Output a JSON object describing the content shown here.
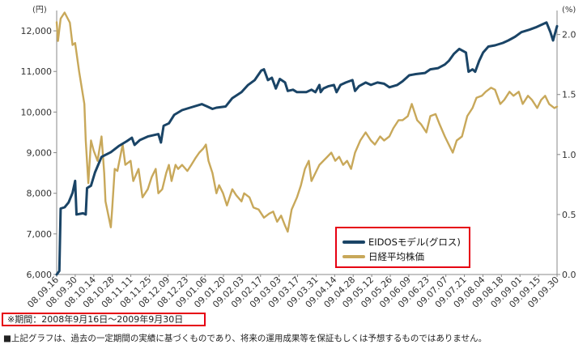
{
  "chart_data": {
    "type": "line",
    "left_axis_unit": "(円)",
    "right_axis_unit": "(%)",
    "left_ylim": [
      6000,
      12500
    ],
    "right_ylim": [
      0.0,
      2.2
    ],
    "left_ticks": [
      "6,000",
      "7,000",
      "8,000",
      "9,000",
      "10,000",
      "11,000",
      "12,000"
    ],
    "right_ticks": [
      "0.0",
      "0.5",
      "1.0",
      "1.5",
      "2.0"
    ],
    "x_range": [
      "2008-09-16",
      "2009-09-30"
    ],
    "x_ticks": [
      "08.09.16",
      "08.09.30",
      "08.10.14",
      "08.10.28",
      "08.11.11",
      "08.11.25",
      "08.12.09",
      "08.12.23",
      "09.01.06",
      "09.01.20",
      "09.02.03",
      "09.02.17",
      "09.03.03",
      "09.03.17",
      "09.03.31",
      "09.04.14",
      "09.04.28",
      "09.05.12",
      "09.05.26",
      "09.06.09",
      "09.06.23",
      "09.07.07",
      "09.07.21",
      "09.08.04",
      "09.08.18",
      "09.09.01",
      "09.09.15",
      "09.09.30"
    ],
    "grid": false,
    "legend_position": "lower-right",
    "series": [
      {
        "name": "EIDOSモデル(グロス)",
        "axis": "right",
        "color": "#1a4466",
        "points": [
          [
            "2008-09-16",
            0.0
          ],
          [
            "2008-09-18",
            0.03
          ],
          [
            "2008-09-19",
            0.55
          ],
          [
            "2008-09-22",
            0.56
          ],
          [
            "2008-09-25",
            0.6
          ],
          [
            "2008-09-28",
            0.68
          ],
          [
            "2008-09-30",
            0.78
          ],
          [
            "2008-10-01",
            0.5
          ],
          [
            "2008-10-06",
            0.51
          ],
          [
            "2008-10-08",
            0.5
          ],
          [
            "2008-10-09",
            0.72
          ],
          [
            "2008-10-12",
            0.74
          ],
          [
            "2008-10-15",
            0.85
          ],
          [
            "2008-10-20",
            0.98
          ],
          [
            "2008-10-27",
            1.02
          ],
          [
            "2008-11-02",
            1.07
          ],
          [
            "2008-11-08",
            1.11
          ],
          [
            "2008-11-12",
            1.14
          ],
          [
            "2008-11-14",
            1.08
          ],
          [
            "2008-11-18",
            1.12
          ],
          [
            "2008-11-24",
            1.15
          ],
          [
            "2008-12-02",
            1.17
          ],
          [
            "2008-12-04",
            1.1
          ],
          [
            "2008-12-06",
            1.24
          ],
          [
            "2008-12-10",
            1.26
          ],
          [
            "2008-12-14",
            1.33
          ],
          [
            "2008-12-20",
            1.37
          ],
          [
            "2008-12-26",
            1.39
          ],
          [
            "2009-01-04",
            1.42
          ],
          [
            "2009-01-08",
            1.4
          ],
          [
            "2009-01-12",
            1.38
          ],
          [
            "2009-01-15",
            1.39
          ],
          [
            "2009-01-22",
            1.4
          ],
          [
            "2009-01-27",
            1.47
          ],
          [
            "2009-02-03",
            1.52
          ],
          [
            "2009-02-08",
            1.58
          ],
          [
            "2009-02-13",
            1.62
          ],
          [
            "2009-02-18",
            1.7
          ],
          [
            "2009-02-20",
            1.71
          ],
          [
            "2009-02-23",
            1.62
          ],
          [
            "2009-02-26",
            1.64
          ],
          [
            "2009-03-01",
            1.55
          ],
          [
            "2009-03-04",
            1.63
          ],
          [
            "2009-03-08",
            1.6
          ],
          [
            "2009-03-10",
            1.53
          ],
          [
            "2009-03-14",
            1.54
          ],
          [
            "2009-03-17",
            1.52
          ],
          [
            "2009-03-24",
            1.52
          ],
          [
            "2009-03-28",
            1.54
          ],
          [
            "2009-03-31",
            1.52
          ],
          [
            "2009-04-03",
            1.58
          ],
          [
            "2009-04-04",
            1.52
          ],
          [
            "2009-04-06",
            1.55
          ],
          [
            "2009-04-10",
            1.57
          ],
          [
            "2009-04-14",
            1.58
          ],
          [
            "2009-04-16",
            1.52
          ],
          [
            "2009-04-19",
            1.58
          ],
          [
            "2009-04-23",
            1.6
          ],
          [
            "2009-04-28",
            1.62
          ],
          [
            "2009-04-30",
            1.53
          ],
          [
            "2009-05-03",
            1.57
          ],
          [
            "2009-05-08",
            1.6
          ],
          [
            "2009-05-12",
            1.58
          ],
          [
            "2009-05-17",
            1.6
          ],
          [
            "2009-05-22",
            1.59
          ],
          [
            "2009-05-26",
            1.56
          ],
          [
            "2009-06-01",
            1.58
          ],
          [
            "2009-06-05",
            1.61
          ],
          [
            "2009-06-08",
            1.64
          ],
          [
            "2009-06-10",
            1.66
          ],
          [
            "2009-06-15",
            1.67
          ],
          [
            "2009-06-22",
            1.68
          ],
          [
            "2009-06-26",
            1.71
          ],
          [
            "2009-07-02",
            1.72
          ],
          [
            "2009-07-07",
            1.75
          ],
          [
            "2009-07-10",
            1.78
          ],
          [
            "2009-07-14",
            1.84
          ],
          [
            "2009-07-18",
            1.88
          ],
          [
            "2009-07-23",
            1.85
          ],
          [
            "2009-07-25",
            1.69
          ],
          [
            "2009-07-28",
            1.71
          ],
          [
            "2009-07-30",
            1.69
          ],
          [
            "2009-08-02",
            1.78
          ],
          [
            "2009-08-05",
            1.85
          ],
          [
            "2009-08-09",
            1.9
          ],
          [
            "2009-08-14",
            1.91
          ],
          [
            "2009-08-20",
            1.93
          ],
          [
            "2009-08-24",
            1.95
          ],
          [
            "2009-08-29",
            1.98
          ],
          [
            "2009-09-03",
            2.02
          ],
          [
            "2009-09-09",
            2.04
          ],
          [
            "2009-09-14",
            2.06
          ],
          [
            "2009-09-18",
            2.08
          ],
          [
            "2009-09-22",
            2.1
          ],
          [
            "2009-09-25",
            2.02
          ],
          [
            "2009-09-27",
            1.95
          ],
          [
            "2009-09-30",
            2.07
          ]
        ]
      },
      {
        "name": "日経平均株価",
        "axis": "left",
        "color": "#c8a85a",
        "points": [
          [
            "2008-09-16",
            12214
          ],
          [
            "2008-09-17",
            11750
          ],
          [
            "2008-09-19",
            12300
          ],
          [
            "2008-09-22",
            12450
          ],
          [
            "2008-09-26",
            12200
          ],
          [
            "2008-09-28",
            11650
          ],
          [
            "2008-09-30",
            11700
          ],
          [
            "2008-10-03",
            11000
          ],
          [
            "2008-10-07",
            10200
          ],
          [
            "2008-10-08",
            9300
          ],
          [
            "2008-10-10",
            8250
          ],
          [
            "2008-10-12",
            9300
          ],
          [
            "2008-10-14",
            9050
          ],
          [
            "2008-10-17",
            8800
          ],
          [
            "2008-10-20",
            9400
          ],
          [
            "2008-10-22",
            8500
          ],
          [
            "2008-10-23",
            7800
          ],
          [
            "2008-10-27",
            7162
          ],
          [
            "2008-10-28",
            7600
          ],
          [
            "2008-10-30",
            8600
          ],
          [
            "2008-11-01",
            8550
          ],
          [
            "2008-11-05",
            9200
          ],
          [
            "2008-11-07",
            8700
          ],
          [
            "2008-11-11",
            8800
          ],
          [
            "2008-11-13",
            8300
          ],
          [
            "2008-11-17",
            8600
          ],
          [
            "2008-11-20",
            7900
          ],
          [
            "2008-11-24",
            8100
          ],
          [
            "2008-11-27",
            8400
          ],
          [
            "2008-11-30",
            8600
          ],
          [
            "2008-12-02",
            8000
          ],
          [
            "2008-12-05",
            8100
          ],
          [
            "2008-12-08",
            8500
          ],
          [
            "2008-12-10",
            8700
          ],
          [
            "2008-12-12",
            8300
          ],
          [
            "2008-12-15",
            8700
          ],
          [
            "2008-12-17",
            8600
          ],
          [
            "2008-12-20",
            8700
          ],
          [
            "2008-12-24",
            8550
          ],
          [
            "2008-12-27",
            8700
          ],
          [
            "2008-12-30",
            8860
          ],
          [
            "2009-01-02",
            9000
          ],
          [
            "2009-01-05",
            9100
          ],
          [
            "2009-01-07",
            9200
          ],
          [
            "2009-01-09",
            8800
          ],
          [
            "2009-01-12",
            8500
          ],
          [
            "2009-01-15",
            8000
          ],
          [
            "2009-01-17",
            8200
          ],
          [
            "2009-01-20",
            8000
          ],
          [
            "2009-01-23",
            7700
          ],
          [
            "2009-01-27",
            8100
          ],
          [
            "2009-01-30",
            7950
          ],
          [
            "2009-02-03",
            7800
          ],
          [
            "2009-02-05",
            8000
          ],
          [
            "2009-02-09",
            7900
          ],
          [
            "2009-02-12",
            7650
          ],
          [
            "2009-02-16",
            7600
          ],
          [
            "2009-02-20",
            7400
          ],
          [
            "2009-02-24",
            7500
          ],
          [
            "2009-02-27",
            7550
          ],
          [
            "2009-03-02",
            7300
          ],
          [
            "2009-03-05",
            7450
          ],
          [
            "2009-03-08",
            7200
          ],
          [
            "2009-03-10",
            7055
          ],
          [
            "2009-03-13",
            7600
          ],
          [
            "2009-03-17",
            7900
          ],
          [
            "2009-03-20",
            8200
          ],
          [
            "2009-03-23",
            8600
          ],
          [
            "2009-03-26",
            8800
          ],
          [
            "2009-03-28",
            8300
          ],
          [
            "2009-03-31",
            8500
          ],
          [
            "2009-04-03",
            8700
          ],
          [
            "2009-04-06",
            8800
          ],
          [
            "2009-04-09",
            8900
          ],
          [
            "2009-04-12",
            9000
          ],
          [
            "2009-04-15",
            8800
          ],
          [
            "2009-04-18",
            8900
          ],
          [
            "2009-04-21",
            8700
          ],
          [
            "2009-04-24",
            8800
          ],
          [
            "2009-04-27",
            8600
          ],
          [
            "2009-04-30",
            9000
          ],
          [
            "2009-05-04",
            9300
          ],
          [
            "2009-05-08",
            9500
          ],
          [
            "2009-05-12",
            9300
          ],
          [
            "2009-05-15",
            9200
          ],
          [
            "2009-05-19",
            9400
          ],
          [
            "2009-05-22",
            9300
          ],
          [
            "2009-05-26",
            9400
          ],
          [
            "2009-05-29",
            9600
          ],
          [
            "2009-06-02",
            9800
          ],
          [
            "2009-06-05",
            9800
          ],
          [
            "2009-06-09",
            9900
          ],
          [
            "2009-06-12",
            10200
          ],
          [
            "2009-06-16",
            9800
          ],
          [
            "2009-06-19",
            9700
          ],
          [
            "2009-06-23",
            9500
          ],
          [
            "2009-06-26",
            9900
          ],
          [
            "2009-06-30",
            9950
          ],
          [
            "2009-07-03",
            9700
          ],
          [
            "2009-07-07",
            9400
          ],
          [
            "2009-07-13",
            9000
          ],
          [
            "2009-07-16",
            9300
          ],
          [
            "2009-07-20",
            9400
          ],
          [
            "2009-07-24",
            9900
          ],
          [
            "2009-07-28",
            10100
          ],
          [
            "2009-07-31",
            10350
          ],
          [
            "2009-08-04",
            10400
          ],
          [
            "2009-08-07",
            10500
          ],
          [
            "2009-08-11",
            10600
          ],
          [
            "2009-08-14",
            10550
          ],
          [
            "2009-08-18",
            10200
          ],
          [
            "2009-08-21",
            10300
          ],
          [
            "2009-08-25",
            10500
          ],
          [
            "2009-08-28",
            10400
          ],
          [
            "2009-09-01",
            10500
          ],
          [
            "2009-09-04",
            10200
          ],
          [
            "2009-09-08",
            10400
          ],
          [
            "2009-09-11",
            10300
          ],
          [
            "2009-09-15",
            10100
          ],
          [
            "2009-09-18",
            10300
          ],
          [
            "2009-09-21",
            10400
          ],
          [
            "2009-09-24",
            10200
          ],
          [
            "2009-09-28",
            10100
          ],
          [
            "2009-09-30",
            10133
          ]
        ]
      }
    ]
  },
  "legend": {
    "items": [
      {
        "label": "EIDOSモデル(グロス)",
        "color": "#1a4466"
      },
      {
        "label": "日経平均株価",
        "color": "#c8a85a"
      }
    ]
  },
  "footer": {
    "period": "※期間：2008年9月16日～2009年9月30日",
    "disclaimer": "■上記グラフは、過去の一定期間の実績に基づくものであり、将来の運用成果等を保証もしくは予想するものではありません。"
  },
  "colors": {
    "eidos": "#1a4466",
    "nikkei": "#c8a85a",
    "highlight": "#e60012",
    "axis": "#888888"
  }
}
